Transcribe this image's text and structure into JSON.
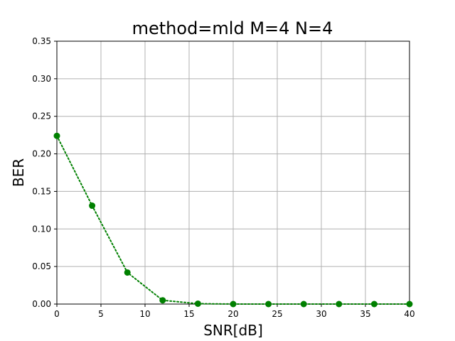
{
  "chart_data": {
    "type": "line",
    "title": "method=mld M=4 N=4",
    "xlabel": "SNR[dB]",
    "ylabel": "BER",
    "xlim": [
      0,
      40
    ],
    "ylim": [
      0,
      0.35
    ],
    "xticks": [
      0,
      5,
      10,
      15,
      20,
      25,
      30,
      35,
      40
    ],
    "yticks": [
      0.0,
      0.05,
      0.1,
      0.15,
      0.2,
      0.25,
      0.3,
      0.35
    ],
    "xtick_labels": [
      "0",
      "5",
      "10",
      "15",
      "20",
      "25",
      "30",
      "35",
      "40"
    ],
    "ytick_labels": [
      "0.00",
      "0.05",
      "0.10",
      "0.15",
      "0.20",
      "0.25",
      "0.30",
      "0.35"
    ],
    "grid": true,
    "series": [
      {
        "color": "#008000",
        "line_style": "dotted",
        "marker": "circle",
        "x": [
          0,
          4,
          8,
          12,
          16,
          20,
          24,
          28,
          32,
          36,
          40
        ],
        "y": [
          0.224,
          0.131,
          0.042,
          0.005,
          0.0005,
          0.0,
          0.0,
          0.0,
          0.0,
          0.0,
          0.0
        ]
      }
    ]
  }
}
